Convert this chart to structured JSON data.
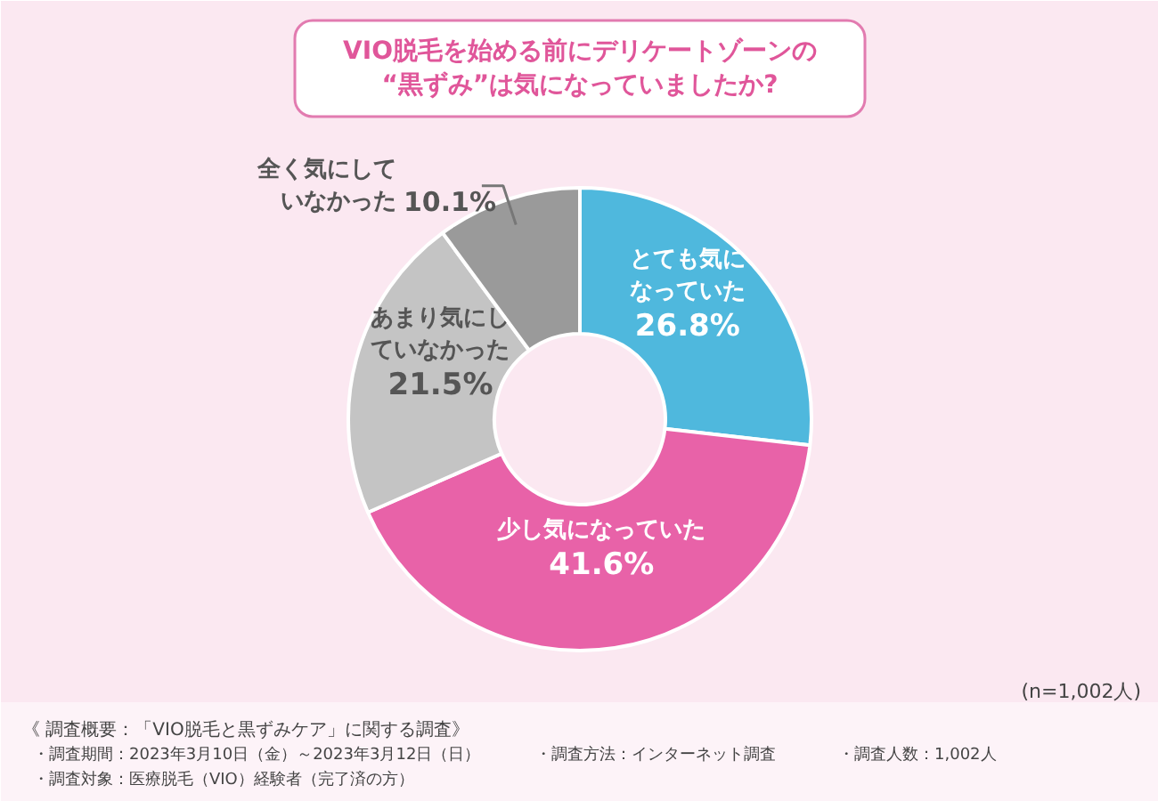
{
  "chart_data": {
    "type": "donut",
    "title": "VIO脱毛を始める前にデリケートゾーンの\n“黒ずみ”は気になっていましたか?",
    "categories": [
      "とても気になっていた",
      "少し気になっていた",
      "あまり気にしていなかった",
      "全く気にしていなかった"
    ],
    "values": [
      26.8,
      41.6,
      21.5,
      10.1
    ],
    "value_labels": [
      "26.8%",
      "41.6%",
      "21.5%",
      "10.1%"
    ],
    "colors": [
      "#4fb8dd",
      "#e862a8",
      "#c4c4c4",
      "#9a9a9a"
    ],
    "annotations": [
      "(n=1,002人)",
      "《 調査概要：「VIO脱毛と黒ずみケア」に関する調査》",
      "・調査期間：2023年3月10日（金）～2023年3月12日（日）",
      "・調査方法：インターネット調査",
      "・調査人数：1,002人",
      "・調査対象：医療脱毛（VIO）経験者（完了済の方）"
    ]
  }
}
